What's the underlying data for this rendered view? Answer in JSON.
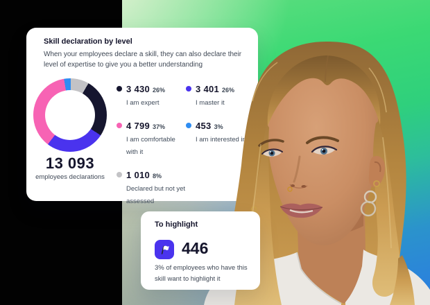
{
  "background": {
    "black_panel": "#020202",
    "gradient_green": "#3bd974",
    "gradient_blue": "#2b7ce2",
    "gradient_pale": "#eef3dd",
    "photo_strip_blue": "#7badd8",
    "photo_strip_sage": "#bcc5ae"
  },
  "skill_card": {
    "title": "Skill declaration by level",
    "description_line1": "When your employees declare a skill, they can also declare their",
    "description_line2": "level of expertise to give you a better understanding",
    "total_value": "13 093",
    "total_label": "employees declarations"
  },
  "highlight_card": {
    "title": "To highlight",
    "value": "446",
    "caption_line1": "3% of employees who have this",
    "caption_line2": "skill want to highlight it",
    "icon": "flag-icon",
    "icon_bg": "#4a33ee"
  },
  "chart_data": {
    "type": "pie",
    "subtype": "donut",
    "title": "Skill declaration by level",
    "total": 13093,
    "total_display": "13 093",
    "unit": "employees declarations",
    "legend_position": "right, two columns",
    "slices": [
      {
        "label": "I am expert",
        "value": 3430,
        "display": "3 430",
        "percent": "26%",
        "color": "#16162f",
        "column": 1
      },
      {
        "label": "I master it",
        "value": 3401,
        "display": "3 401",
        "percent": "26%",
        "color": "#4a33ee",
        "column": 2
      },
      {
        "label": "I am comfortable with it",
        "value": 4799,
        "display": "4 799",
        "percent": "37%",
        "color": "#f763b4",
        "column": 1
      },
      {
        "label": "I am interested in",
        "value": 453,
        "display": "453",
        "percent": "3%",
        "color": "#2f8df2",
        "column": 2
      },
      {
        "label": "Declared but not yet assessed",
        "value": 1010,
        "display": "1 010",
        "percent": "8%",
        "color": "#c3c3c6",
        "column": 1
      }
    ]
  }
}
